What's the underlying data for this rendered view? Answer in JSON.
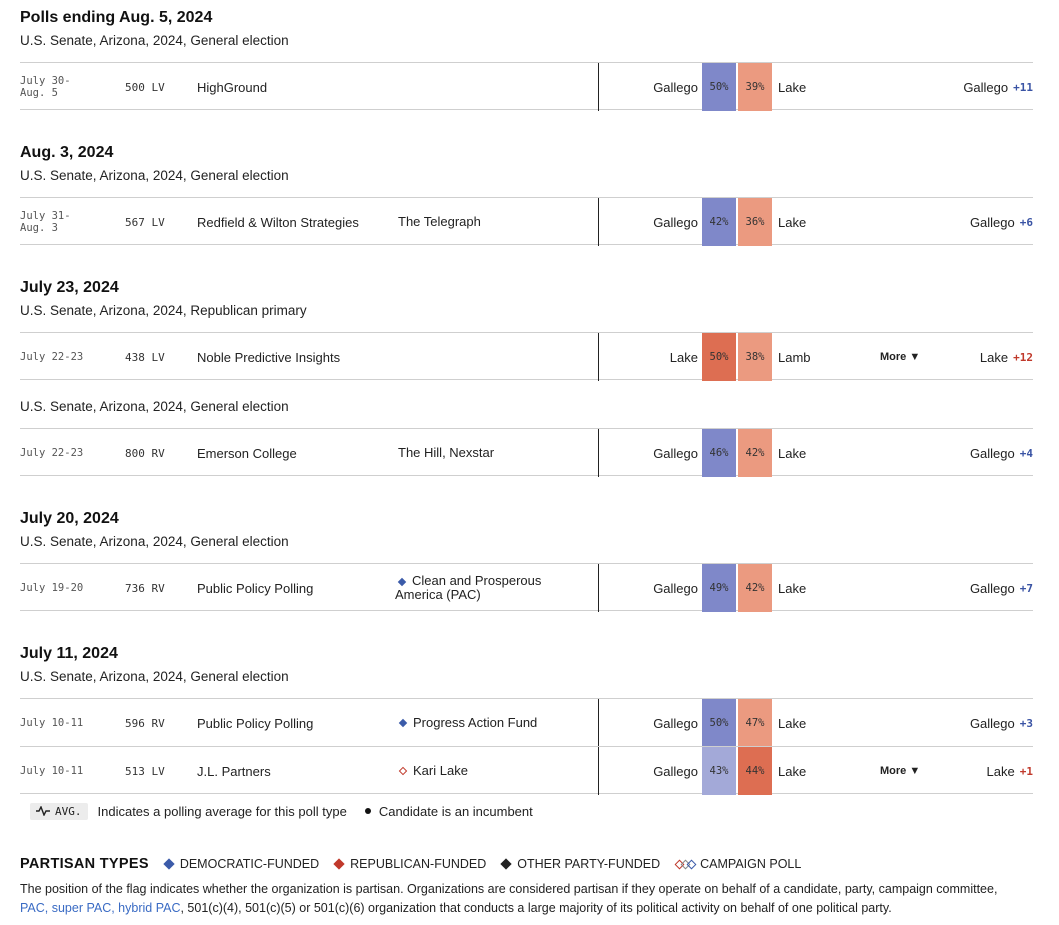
{
  "colors": {
    "dem_strong": "#7f88c9",
    "dem_light": "#a3a9d8",
    "rep_strong": "#dd6e52",
    "rep_light": "#eb9a80",
    "dem_text": "#3953a4",
    "rep_text": "#c0392b"
  },
  "groups": [
    {
      "title": "Polls ending Aug. 5, 2024",
      "races": [
        {
          "race": "U.S. Senate, Arizona, 2024, General election",
          "polls": [
            {
              "dates": [
                "July 30-",
                "Aug. 5"
              ],
              "sample": "500 LV",
              "pollster": "HighGround",
              "sponsor": "",
              "sponsor_type": "",
              "cand1": "Gallego",
              "pct1": "50%",
              "party1": "dem",
              "pct2": "39%",
              "cand2": "Lake",
              "party2": "rep",
              "more": "",
              "leader": "Gallego",
              "margin": "+11",
              "margin_party": "dem"
            }
          ]
        }
      ]
    },
    {
      "title": "Aug. 3, 2024",
      "races": [
        {
          "race": "U.S. Senate, Arizona, 2024, General election",
          "polls": [
            {
              "dates": [
                "July 31-",
                "Aug. 3"
              ],
              "sample": "567 LV",
              "pollster": "Redfield & Wilton Strategies",
              "sponsor": "The Telegraph",
              "sponsor_type": "",
              "cand1": "Gallego",
              "pct1": "42%",
              "party1": "dem",
              "pct2": "36%",
              "cand2": "Lake",
              "party2": "rep",
              "more": "",
              "leader": "Gallego",
              "margin": "+6",
              "margin_party": "dem"
            }
          ]
        }
      ]
    },
    {
      "title": "July 23, 2024",
      "races": [
        {
          "race": "U.S. Senate, Arizona, 2024, Republican primary",
          "polls": [
            {
              "dates": [
                "July 22-23"
              ],
              "sample": "438 LV",
              "pollster": "Noble Predictive Insights",
              "sponsor": "",
              "sponsor_type": "",
              "cand1": "Lake",
              "pct1": "50%",
              "party1": "rep",
              "pct2": "38%",
              "cand2": "Lamb",
              "party2": "rep",
              "more": "More ▼",
              "leader": "Lake",
              "margin": "+12",
              "margin_party": "rep"
            }
          ]
        },
        {
          "race": "U.S. Senate, Arizona, 2024, General election",
          "polls": [
            {
              "dates": [
                "July 22-23"
              ],
              "sample": "800 RV",
              "pollster": "Emerson College",
              "sponsor": "The Hill, Nexstar",
              "sponsor_type": "",
              "cand1": "Gallego",
              "pct1": "46%",
              "party1": "dem",
              "pct2": "42%",
              "cand2": "Lake",
              "party2": "rep",
              "more": "",
              "leader": "Gallego",
              "margin": "+4",
              "margin_party": "dem"
            }
          ]
        }
      ]
    },
    {
      "title": "July 20, 2024",
      "races": [
        {
          "race": "U.S. Senate, Arizona, 2024, General election",
          "polls": [
            {
              "dates": [
                "July 19-20"
              ],
              "sample": "736 RV",
              "pollster": "Public Policy Polling",
              "sponsor": "Clean and Prosperous America (PAC)",
              "sponsor_type": "dem",
              "cand1": "Gallego",
              "pct1": "49%",
              "party1": "dem",
              "pct2": "42%",
              "cand2": "Lake",
              "party2": "rep",
              "more": "",
              "leader": "Gallego",
              "margin": "+7",
              "margin_party": "dem"
            }
          ]
        }
      ]
    },
    {
      "title": "July 11, 2024",
      "races": [
        {
          "race": "U.S. Senate, Arizona, 2024, General election",
          "polls": [
            {
              "dates": [
                "July 10-11"
              ],
              "sample": "596 RV",
              "pollster": "Public Policy Polling",
              "sponsor": "Progress Action Fund",
              "sponsor_type": "dem",
              "cand1": "Gallego",
              "pct1": "50%",
              "party1": "dem",
              "pct2": "47%",
              "cand2": "Lake",
              "party2": "rep",
              "more": "",
              "leader": "Gallego",
              "margin": "+3",
              "margin_party": "dem"
            },
            {
              "dates": [
                "July 10-11"
              ],
              "sample": "513 LV",
              "pollster": "J.L. Partners",
              "sponsor": "Kari Lake",
              "sponsor_type": "campaign-rep",
              "cand1": "Gallego",
              "pct1": "43%",
              "party1": "dem",
              "pct2": "44%",
              "cand2": "Lake",
              "party2": "rep",
              "more": "More ▼",
              "leader": "Lake",
              "margin": "+1",
              "margin_party": "rep"
            }
          ]
        }
      ]
    }
  ],
  "legend": {
    "avg_badge": "AVG.",
    "avg_text": "Indicates a polling average for this poll type",
    "incumbent_text": "Candidate is an incumbent"
  },
  "partisan": {
    "title": "PARTISAN TYPES",
    "types": [
      {
        "label": "DEMOCRATIC-FUNDED",
        "kind": "dem"
      },
      {
        "label": "REPUBLICAN-FUNDED",
        "kind": "rep"
      },
      {
        "label": "OTHER PARTY-FUNDED",
        "kind": "oth"
      },
      {
        "label": "CAMPAIGN POLL",
        "kind": "camp"
      }
    ],
    "explain_1": "The position of the flag indicates whether the organization is partisan. Organizations are considered partisan if they operate on behalf of a candidate, party, campaign committee, ",
    "explain_link": "PAC, super PAC, hybrid PAC",
    "explain_2": ", 501(c)(4), 501(c)(5) or 501(c)(6) organization that conducts a large majority of its political activity on behalf of one political party."
  }
}
